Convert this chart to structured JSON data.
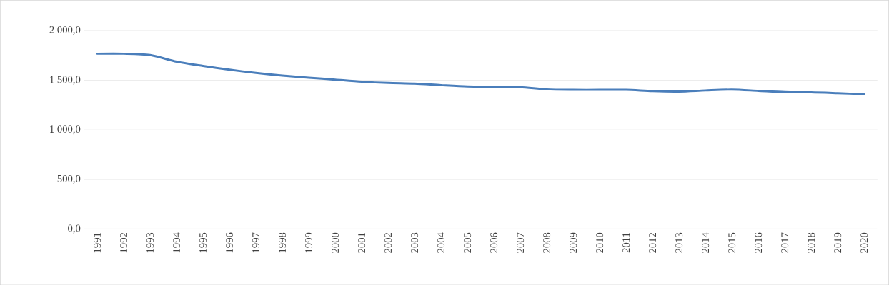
{
  "chart_data": {
    "type": "line",
    "categories": [
      "1991",
      "1992",
      "1993",
      "1994",
      "1995",
      "1996",
      "1997",
      "1998",
      "1999",
      "2000",
      "2001",
      "2002",
      "2003",
      "2004",
      "2005",
      "2006",
      "2007",
      "2008",
      "2009",
      "2010",
      "2011",
      "2012",
      "2013",
      "2014",
      "2015",
      "2016",
      "2017",
      "2018",
      "2019",
      "2020"
    ],
    "series": [
      {
        "color": "#4a7ebb",
        "values": [
          1767,
          1767,
          1753,
          1687,
          1644,
          1606,
          1574,
          1547,
          1526,
          1506,
          1486,
          1473,
          1466,
          1451,
          1438,
          1435,
          1430,
          1408,
          1403,
          1403,
          1403,
          1390,
          1386,
          1397,
          1405,
          1393,
          1381,
          1378,
          1369,
          1359
        ]
      }
    ],
    "ylim": [
      0,
      2000
    ],
    "yticks": [
      {
        "value": 0,
        "label": "0,0"
      },
      {
        "value": 500,
        "label": "500,0"
      },
      {
        "value": 1000,
        "label": "1 000,0"
      },
      {
        "value": 1500,
        "label": "1 500,0"
      },
      {
        "value": 2000,
        "label": "2 000,0"
      }
    ],
    "grid": "y",
    "marker": "none",
    "line_style": "solid"
  }
}
